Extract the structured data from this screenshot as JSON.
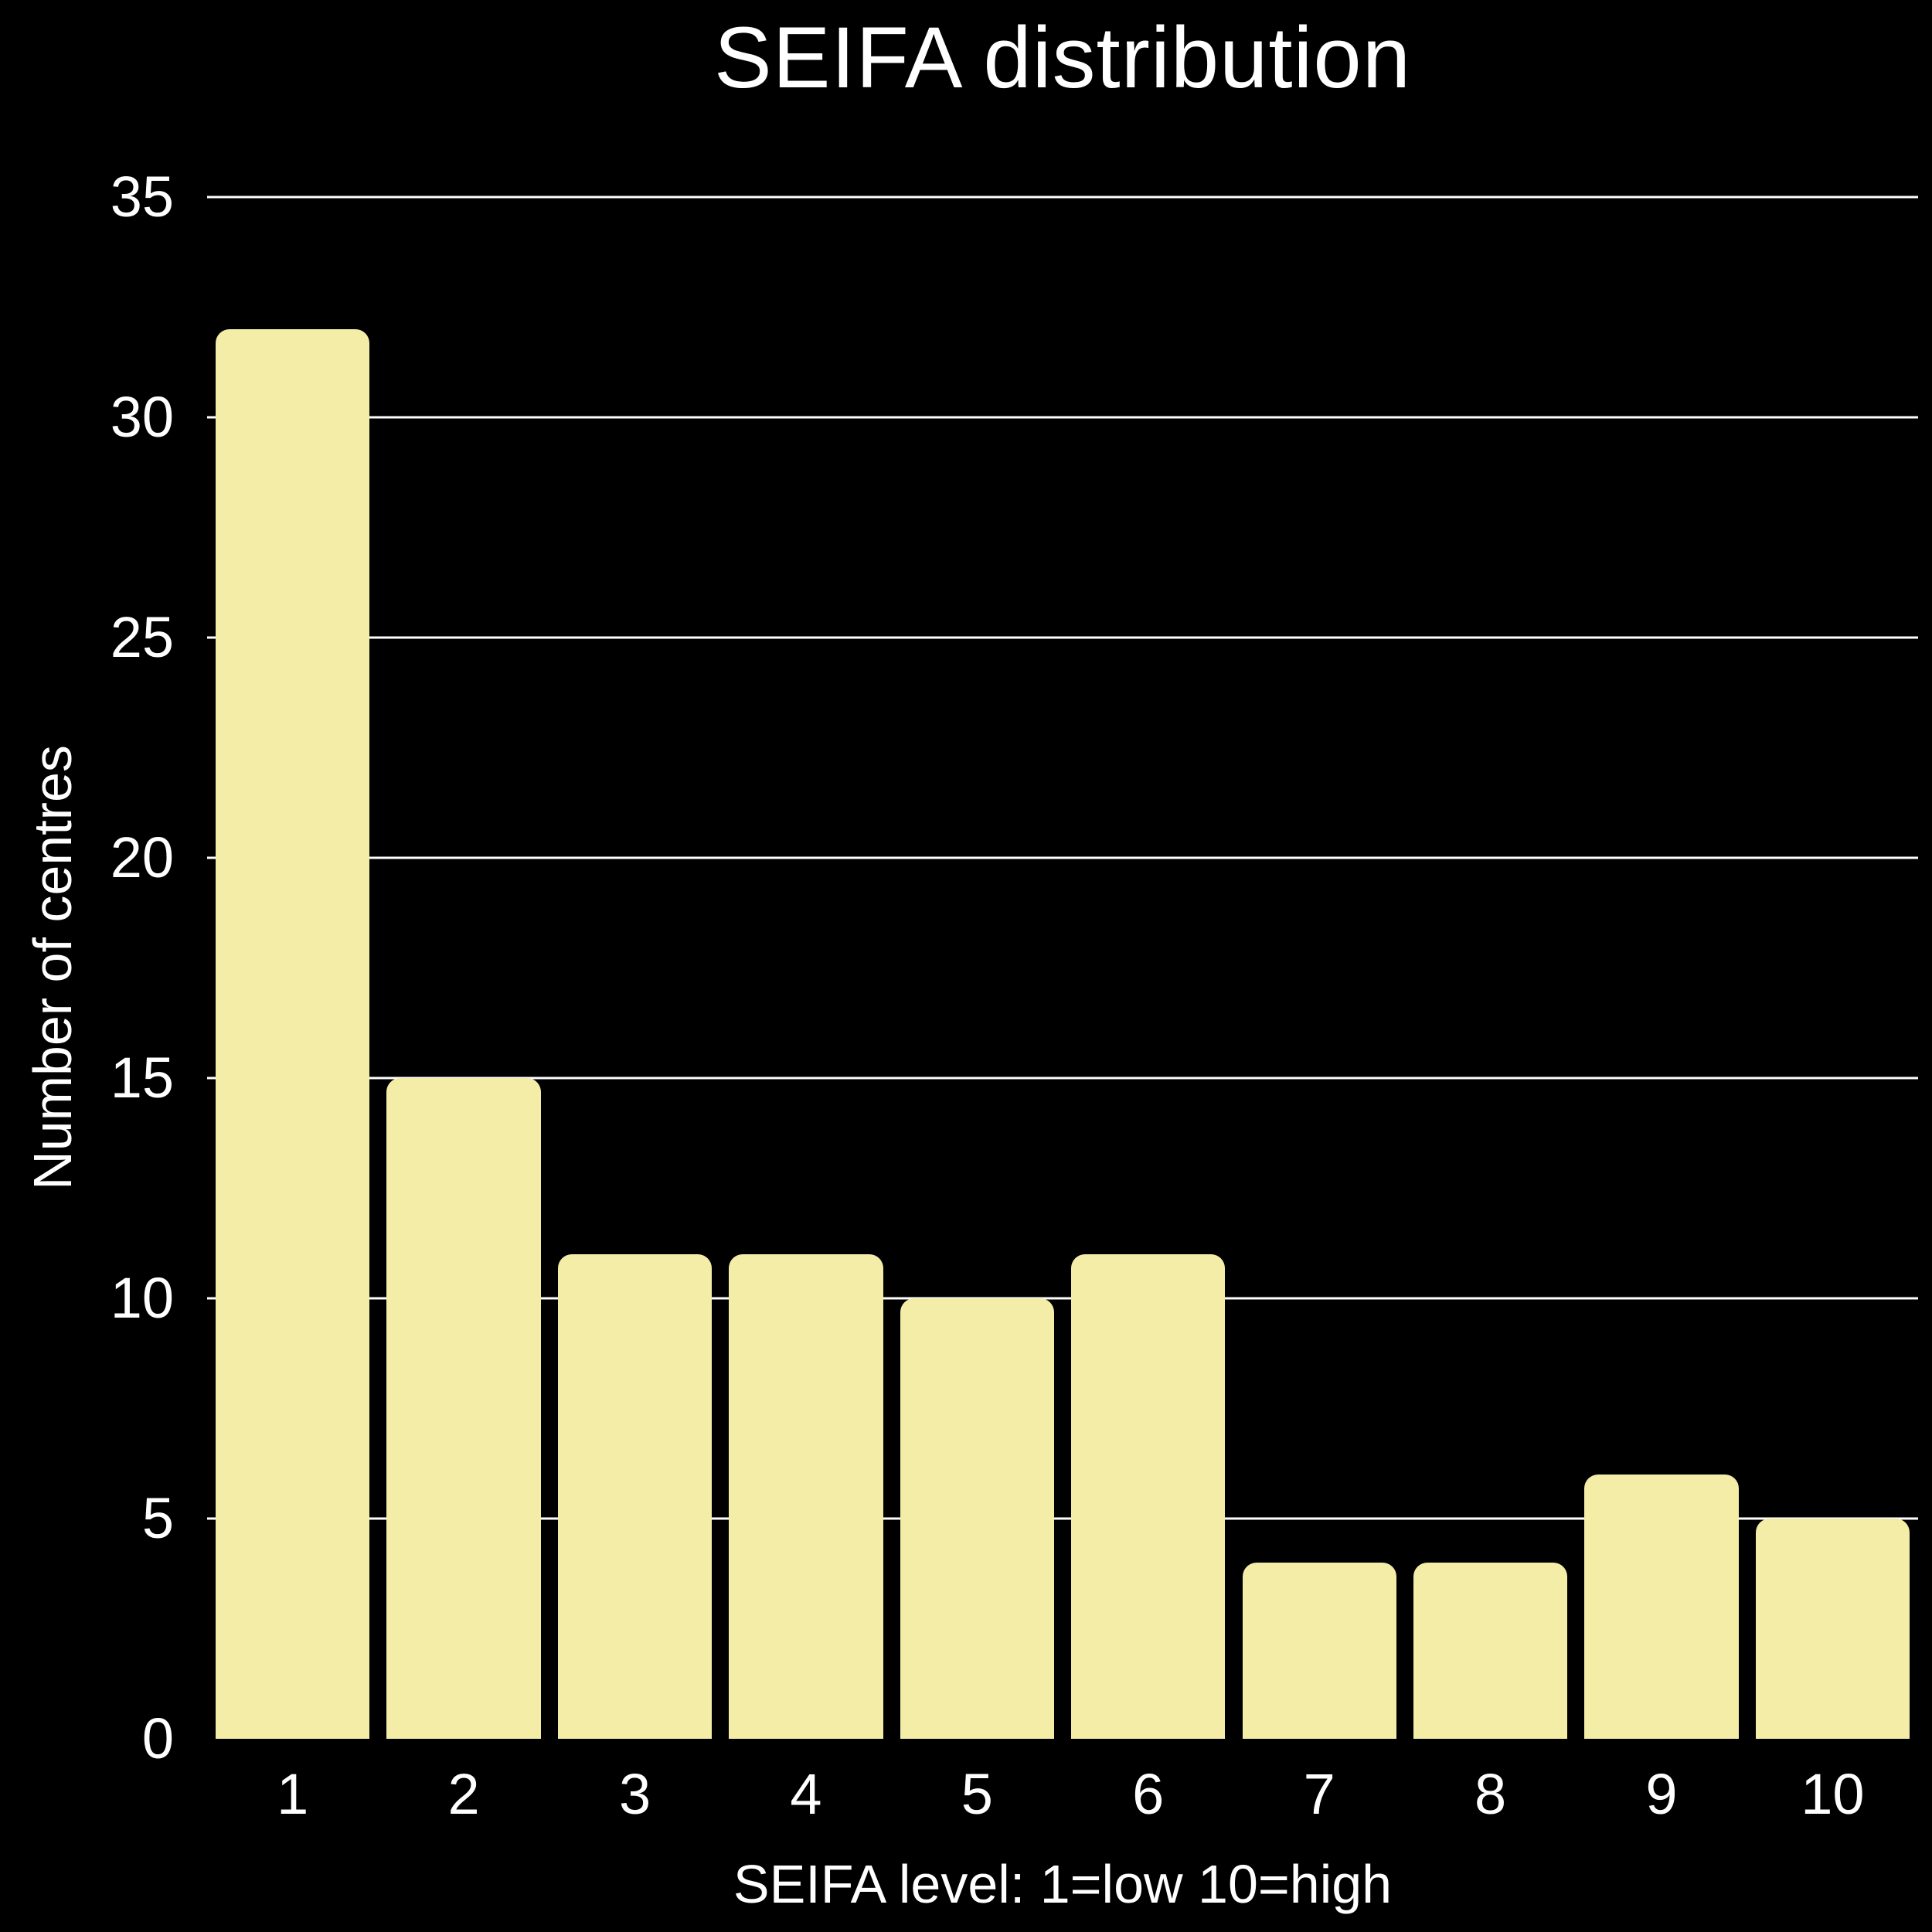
{
  "chart_data": {
    "type": "bar",
    "title": "SEIFA distribution",
    "xlabel": "SEIFA level: 1=low 10=high",
    "ylabel": "Number of centres",
    "categories": [
      "1",
      "2",
      "3",
      "4",
      "5",
      "6",
      "7",
      "8",
      "9",
      "10"
    ],
    "values": [
      32,
      15,
      11,
      11,
      10,
      11,
      4,
      4,
      6,
      5
    ],
    "ylim": [
      0,
      35
    ],
    "yticks": [
      0,
      5,
      10,
      15,
      20,
      25,
      30,
      35
    ],
    "grid": "horizontal-only",
    "legend": "none",
    "colors": {
      "bar": "#F3EDA8",
      "background": "#000000",
      "text": "#FFFFFF",
      "gridline": "#FFFFFF"
    }
  }
}
